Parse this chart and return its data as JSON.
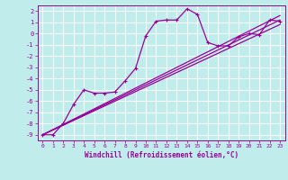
{
  "xlabel": "Windchill (Refroidissement éolien,°C)",
  "bg_color": "#c0ecec",
  "line_color": "#990099",
  "grid_color": "#ffffff",
  "xlim": [
    -0.5,
    23.5
  ],
  "ylim": [
    -9.5,
    2.5
  ],
  "yticks": [
    2,
    1,
    0,
    -1,
    -2,
    -3,
    -4,
    -5,
    -6,
    -7,
    -8,
    -9
  ],
  "xticks": [
    0,
    1,
    2,
    3,
    4,
    5,
    6,
    7,
    8,
    9,
    10,
    11,
    12,
    13,
    14,
    15,
    16,
    17,
    18,
    19,
    20,
    21,
    22,
    23
  ],
  "main_series_x": [
    0,
    1,
    2,
    3,
    4,
    5,
    6,
    7,
    8,
    9,
    10,
    11,
    12,
    13,
    14,
    15,
    16,
    17,
    18,
    19,
    20,
    21,
    22,
    23
  ],
  "main_series_y": [
    -9,
    -9,
    -8,
    -6.3,
    -5,
    -5.3,
    -5.3,
    -5.2,
    -4.2,
    -3.1,
    -0.2,
    1.1,
    1.2,
    1.2,
    2.2,
    1.7,
    -0.8,
    -1.1,
    -1.1,
    -0.3,
    0.0,
    -0.1,
    1.2,
    1.1
  ],
  "line1_x": [
    0,
    23
  ],
  "line1_y": [
    -9.0,
    1.2
  ],
  "line2_x": [
    0,
    23
  ],
  "line2_y": [
    -9.0,
    1.6
  ],
  "line3_x": [
    0,
    23
  ],
  "line3_y": [
    -9.0,
    0.8
  ]
}
